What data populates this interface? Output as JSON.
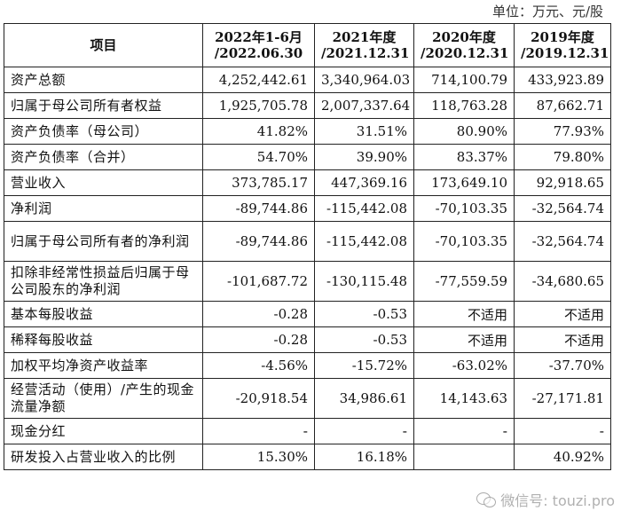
{
  "unit_note": "单位：万元、元/股",
  "table": {
    "headers": [
      {
        "line1": "项目",
        "line2": ""
      },
      {
        "line1": "2022年1-6月",
        "line2": "/2022.06.30"
      },
      {
        "line1": "2021年度",
        "line2": "/2021.12.31"
      },
      {
        "line1": "2020年度",
        "line2": "/2020.12.31"
      },
      {
        "line1": "2019年度",
        "line2": "/2019.12.31"
      }
    ],
    "rows": [
      {
        "label": "资产总额",
        "v": [
          "4,252,442.61",
          "3,340,964.03",
          "714,100.79",
          "433,923.89"
        ]
      },
      {
        "label": "归属于母公司所有者权益",
        "v": [
          "1,925,705.78",
          "2,007,337.64",
          "118,763.28",
          "87,662.71"
        ]
      },
      {
        "label": "资产负债率（母公司）",
        "v": [
          "41.82%",
          "31.51%",
          "80.90%",
          "77.93%"
        ]
      },
      {
        "label": "资产负债率（合并）",
        "v": [
          "54.70%",
          "39.90%",
          "83.37%",
          "79.80%"
        ]
      },
      {
        "label": "营业收入",
        "v": [
          "373,785.17",
          "447,369.16",
          "173,649.10",
          "92,918.65"
        ]
      },
      {
        "label": "净利润",
        "v": [
          "-89,744.86",
          "-115,442.08",
          "-70,103.35",
          "-32,564.74"
        ]
      },
      {
        "label": "归属于母公司所有者的净利润",
        "v": [
          "-89,744.86",
          "-115,442.08",
          "-70,103.35",
          "-32,564.74"
        ]
      },
      {
        "label": "扣除非经常性损益后归属于母公司股东的净利润",
        "v": [
          "-101,687.72",
          "-130,115.48",
          "-77,559.59",
          "-34,680.65"
        ]
      },
      {
        "label": "基本每股收益",
        "v": [
          "-0.28",
          "-0.53",
          "不适用",
          "不适用"
        ]
      },
      {
        "label": "稀释每股收益",
        "v": [
          "-0.28",
          "-0.53",
          "不适用",
          "不适用"
        ]
      },
      {
        "label": "加权平均净资产收益率",
        "v": [
          "-4.56%",
          "-15.72%",
          "-63.02%",
          "-37.70%"
        ]
      },
      {
        "label": "经营活动（使用）/产生的现金流量净额",
        "v": [
          "-20,918.54",
          "34,986.61",
          "14,143.63",
          "-27,171.81"
        ]
      },
      {
        "label": "现金分红",
        "v": [
          "-",
          "-",
          "-",
          "-"
        ]
      },
      {
        "label": "研发投入占营业收入的比例",
        "v": [
          "15.30%",
          "16.18%",
          "",
          "40.92%"
        ]
      }
    ]
  },
  "watermark": {
    "text": "微信号: touzi.pro",
    "icon": "wechat-icon"
  }
}
